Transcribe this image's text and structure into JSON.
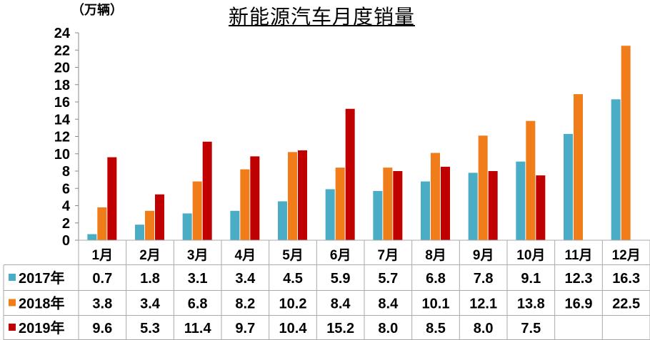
{
  "chart_data": {
    "type": "bar",
    "title": "新能源汽车月度销量",
    "ylabel": "（万辆）",
    "ylim": [
      0,
      24
    ],
    "yticks": [
      0,
      2,
      4,
      6,
      8,
      10,
      12,
      14,
      16,
      18,
      20,
      22,
      24
    ],
    "grid": false,
    "legend": "table-left",
    "categories": [
      "1月",
      "2月",
      "3月",
      "4月",
      "5月",
      "6月",
      "7月",
      "8月",
      "9月",
      "10月",
      "11月",
      "12月"
    ],
    "series": [
      {
        "name": "2017年",
        "color": "#4bacc6",
        "values": [
          0.7,
          1.8,
          3.1,
          3.4,
          4.5,
          5.9,
          5.7,
          6.8,
          7.8,
          9.1,
          12.3,
          16.3
        ]
      },
      {
        "name": "2018年",
        "color": "#f07d1a",
        "values": [
          3.8,
          3.4,
          6.8,
          8.2,
          10.2,
          8.4,
          8.4,
          10.1,
          12.1,
          13.8,
          16.9,
          22.5
        ]
      },
      {
        "name": "2019年",
        "color": "#c00000",
        "values": [
          9.6,
          5.3,
          11.4,
          9.7,
          10.4,
          15.2,
          8.0,
          8.5,
          8.0,
          7.5,
          null,
          null
        ]
      }
    ],
    "table_values": [
      [
        "0.7",
        "1.8",
        "3.1",
        "3.4",
        "4.5",
        "5.9",
        "5.7",
        "6.8",
        "7.8",
        "9.1",
        "12.3",
        "16.3"
      ],
      [
        "3.8",
        "3.4",
        "6.8",
        "8.2",
        "10.2",
        "8.4",
        "8.4",
        "10.1",
        "12.1",
        "13.8",
        "16.9",
        "22.5"
      ],
      [
        "9.6",
        "5.3",
        "11.4",
        "9.7",
        "10.4",
        "15.2",
        "8.0",
        "8.5",
        "8.0",
        "7.5",
        "",
        ""
      ]
    ]
  }
}
